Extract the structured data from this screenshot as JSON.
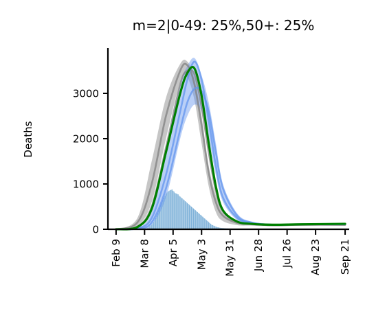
{
  "chart_data": {
    "type": "line",
    "title": "m=2|0-49: 25%,50+: 25%",
    "xlabel": "",
    "ylabel": "Deaths",
    "xlim": [
      "2020-02-01",
      "2020-09-25"
    ],
    "ylim": [
      0,
      4000
    ],
    "yticks": [
      0,
      1000,
      2000,
      3000
    ],
    "xticks": [
      {
        "date": "2020-02-09",
        "label": "Feb 9"
      },
      {
        "date": "2020-03-08",
        "label": "Mar 8"
      },
      {
        "date": "2020-04-05",
        "label": "Apr 5"
      },
      {
        "date": "2020-05-03",
        "label": "May 3"
      },
      {
        "date": "2020-05-31",
        "label": "May 31"
      },
      {
        "date": "2020-06-28",
        "label": "Jun 28"
      },
      {
        "date": "2020-07-26",
        "label": "Jul 26"
      },
      {
        "date": "2020-08-23",
        "label": "Aug 23"
      },
      {
        "date": "2020-09-21",
        "label": "Sep 21"
      }
    ],
    "colors": {
      "green": "#008000",
      "gray_band": "#808080",
      "blue_band": "#6495ed",
      "bars": "#7fb2d9"
    },
    "series": [
      {
        "kind": "band",
        "color": "gray",
        "x": [
          "2020-02-09",
          "2020-03-01",
          "2020-03-15",
          "2020-03-29",
          "2020-04-12",
          "2020-04-19",
          "2020-04-26",
          "2020-05-03",
          "2020-05-10",
          "2020-05-17",
          "2020-05-24",
          "2020-06-07",
          "2020-06-21",
          "2020-07-12",
          "2020-08-09",
          "2020-09-21"
        ],
        "low": [
          0,
          80,
          600,
          2000,
          3250,
          3350,
          2850,
          1900,
          950,
          380,
          180,
          90,
          80,
          70,
          80,
          80
        ],
        "high": [
          0,
          250,
          1500,
          2900,
          3650,
          3700,
          3350,
          2500,
          1400,
          750,
          380,
          180,
          130,
          110,
          110,
          110
        ]
      },
      {
        "kind": "band",
        "color": "blue",
        "x": [
          "2020-02-09",
          "2020-03-01",
          "2020-03-15",
          "2020-03-29",
          "2020-04-12",
          "2020-04-19",
          "2020-04-26",
          "2020-05-03",
          "2020-05-10",
          "2020-05-17",
          "2020-05-24",
          "2020-06-07",
          "2020-06-21",
          "2020-07-12",
          "2020-08-09",
          "2020-09-21"
        ],
        "low": [
          0,
          10,
          100,
          700,
          2000,
          2500,
          2750,
          2600,
          2000,
          1200,
          600,
          200,
          120,
          90,
          100,
          100
        ],
        "high": [
          0,
          30,
          400,
          1800,
          3200,
          3600,
          3780,
          3400,
          2800,
          1900,
          1000,
          350,
          170,
          120,
          130,
          130
        ]
      },
      {
        "kind": "line",
        "color": "gray",
        "x": [
          "2020-02-09",
          "2020-03-01",
          "2020-03-15",
          "2020-03-29",
          "2020-04-12",
          "2020-04-19",
          "2020-04-26",
          "2020-05-03",
          "2020-05-10",
          "2020-05-17",
          "2020-05-24",
          "2020-06-07",
          "2020-06-21",
          "2020-07-12",
          "2020-08-09",
          "2020-09-21"
        ],
        "y": [
          0,
          150,
          1000,
          2500,
          3500,
          3620,
          3200,
          2300,
          1250,
          600,
          300,
          140,
          110,
          90,
          100,
          100
        ]
      },
      {
        "kind": "line",
        "color": "gray",
        "x": [
          "2020-02-09",
          "2020-03-01",
          "2020-03-15",
          "2020-03-29",
          "2020-04-12",
          "2020-04-19",
          "2020-04-26",
          "2020-05-03",
          "2020-05-10",
          "2020-05-17",
          "2020-05-24",
          "2020-06-07",
          "2020-06-21",
          "2020-07-12",
          "2020-08-09",
          "2020-09-21"
        ],
        "y": [
          0,
          60,
          500,
          1800,
          3200,
          3500,
          3420,
          2700,
          1700,
          850,
          400,
          160,
          120,
          90,
          100,
          100
        ]
      },
      {
        "kind": "line",
        "color": "blue",
        "x": [
          "2020-02-09",
          "2020-03-01",
          "2020-03-15",
          "2020-03-29",
          "2020-04-12",
          "2020-04-19",
          "2020-04-26",
          "2020-05-03",
          "2020-05-10",
          "2020-05-17",
          "2020-05-24",
          "2020-06-07",
          "2020-06-21",
          "2020-07-12",
          "2020-08-09",
          "2020-09-21"
        ],
        "y": [
          0,
          20,
          250,
          1200,
          2600,
          3300,
          3700,
          3300,
          2400,
          1400,
          700,
          250,
          140,
          100,
          110,
          110
        ]
      },
      {
        "kind": "line",
        "color": "blue",
        "x": [
          "2020-02-09",
          "2020-03-01",
          "2020-03-15",
          "2020-03-29",
          "2020-04-12",
          "2020-04-19",
          "2020-04-26",
          "2020-05-03",
          "2020-05-10",
          "2020-05-17",
          "2020-05-24",
          "2020-06-07",
          "2020-06-21",
          "2020-07-12",
          "2020-08-09",
          "2020-09-21"
        ],
        "y": [
          0,
          15,
          150,
          900,
          2200,
          2800,
          3100,
          3050,
          2600,
          1700,
          900,
          300,
          150,
          100,
          110,
          110
        ]
      },
      {
        "kind": "line",
        "color": "green",
        "x": [
          "2020-02-09",
          "2020-03-01",
          "2020-03-15",
          "2020-03-29",
          "2020-04-12",
          "2020-04-19",
          "2020-04-26",
          "2020-05-03",
          "2020-05-10",
          "2020-05-17",
          "2020-05-24",
          "2020-06-07",
          "2020-06-21",
          "2020-07-12",
          "2020-08-09",
          "2020-09-21"
        ],
        "y": [
          0,
          50,
          450,
          1700,
          3000,
          3450,
          3550,
          2950,
          1900,
          950,
          420,
          170,
          120,
          100,
          110,
          120
        ]
      }
    ],
    "bars": {
      "start": "2020-03-10",
      "values": [
        20,
        30,
        45,
        60,
        80,
        100,
        130,
        160,
        200,
        250,
        300,
        360,
        420,
        480,
        540,
        600,
        650,
        700,
        740,
        780,
        810,
        830,
        850,
        860,
        870,
        880,
        850,
        830,
        800,
        790,
        780,
        770,
        740,
        720,
        700,
        680,
        660,
        640,
        620,
        600,
        580,
        560,
        540,
        520,
        500,
        480,
        460,
        440,
        420,
        400,
        380,
        360,
        340,
        320,
        300,
        280,
        260,
        240,
        220,
        200,
        180,
        160,
        140,
        120,
        100,
        90,
        80,
        70,
        60,
        50,
        45,
        40,
        35,
        30,
        28,
        26,
        24,
        22,
        20,
        20,
        18,
        18,
        16,
        16,
        15,
        15,
        14,
        14,
        13,
        13,
        12,
        12,
        12,
        11,
        11,
        11,
        10,
        10,
        10,
        10,
        10,
        10,
        10,
        10,
        10,
        10,
        10,
        10,
        10,
        10,
        10,
        10,
        10,
        10,
        10,
        10,
        10,
        10,
        10,
        10,
        10,
        10,
        10,
        10,
        10,
        10,
        10,
        10,
        10,
        10,
        10,
        10,
        10,
        10,
        10,
        10,
        10,
        10,
        10,
        10,
        10,
        10,
        10,
        10,
        10,
        10,
        10,
        10,
        10,
        10,
        10,
        10,
        10,
        10,
        10,
        10,
        10,
        10,
        10,
        10,
        10,
        10,
        10,
        10,
        10,
        10,
        10,
        10,
        10,
        10,
        10,
        10,
        10,
        10,
        10,
        10,
        10,
        10,
        10,
        10,
        10,
        10,
        10,
        10,
        10,
        10,
        10,
        10,
        10,
        10,
        10,
        10,
        10,
        10,
        10,
        10,
        10,
        10,
        10,
        10
      ]
    }
  }
}
